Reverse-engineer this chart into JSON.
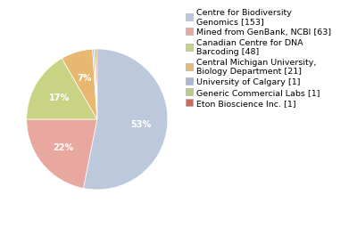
{
  "labels": [
    "Centre for Biodiversity\nGenomics [153]",
    "Mined from GenBank, NCBI [63]",
    "Canadian Centre for DNA\nBarcoding [48]",
    "Central Michigan University,\nBiology Department [21]",
    "University of Calgary [1]",
    "Generic Commercial Labs [1]",
    "Eton Bioscience Inc. [1]"
  ],
  "values": [
    153,
    63,
    48,
    21,
    1,
    1,
    1
  ],
  "colors": [
    "#bcc9dc",
    "#e8a8a0",
    "#c8d484",
    "#e8b870",
    "#a8b8d4",
    "#b8cc88",
    "#d46858"
  ],
  "startangle": 90,
  "background_color": "#ffffff",
  "fontsize_pct": 7.0,
  "fontsize_legend": 6.8
}
